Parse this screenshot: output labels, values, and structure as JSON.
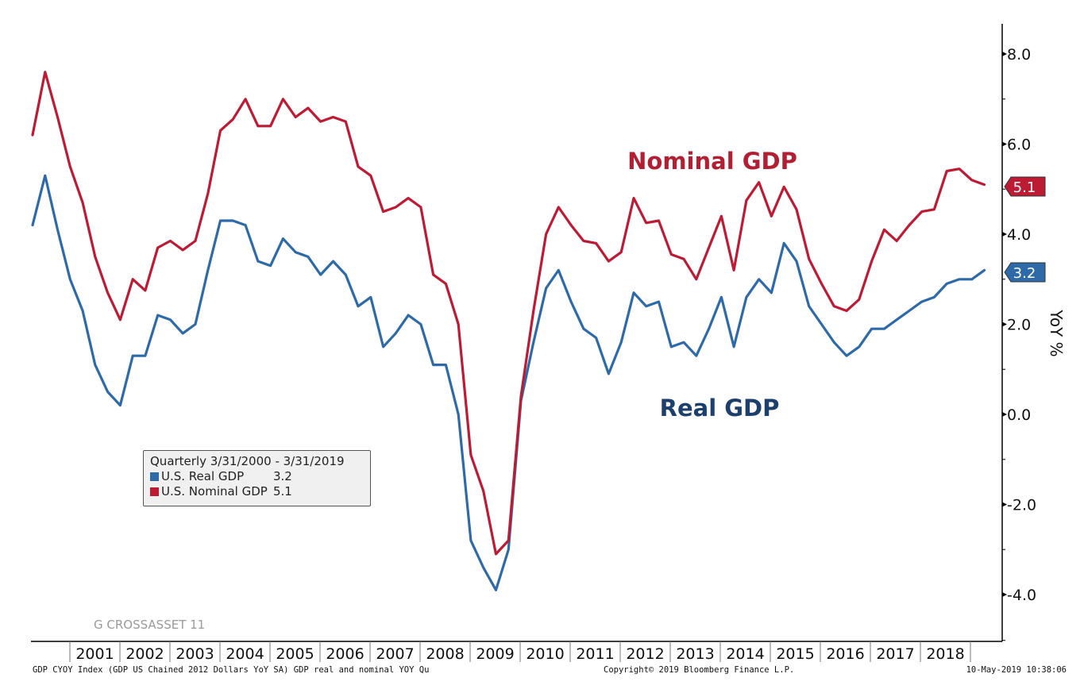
{
  "chart_data": {
    "type": "line",
    "title": "",
    "xlabel": "",
    "ylabel": "YoY %",
    "ylim": [
      -5,
      8.8
    ],
    "yticks": [
      "8.0",
      "6.0",
      "4.0",
      "2.0",
      "0.0",
      "-2.0",
      "-4.0"
    ],
    "ytick_values": [
      8,
      6,
      4,
      2,
      0,
      -2,
      -4
    ],
    "x_start": "3/31/2000",
    "x_end": "3/31/2019",
    "frequency": "Quarterly",
    "year_labels": [
      "2001",
      "2002",
      "2003",
      "2004",
      "2005",
      "2006",
      "2007",
      "2008",
      "2009",
      "2010",
      "2011",
      "2012",
      "2013",
      "2014",
      "2015",
      "2016",
      "2017",
      "2018"
    ],
    "grid": false,
    "legend_position": "bottom-left",
    "series": [
      {
        "name": "U.S. Real GDP",
        "last_value": "3.2",
        "color": "#2e6aa8",
        "values": [
          4.2,
          5.3,
          4.1,
          3.0,
          2.3,
          1.1,
          0.5,
          0.2,
          1.3,
          1.3,
          2.2,
          2.1,
          1.8,
          2.0,
          3.2,
          4.3,
          4.3,
          4.2,
          3.4,
          3.3,
          3.9,
          3.6,
          3.5,
          3.1,
          3.4,
          3.1,
          2.4,
          2.6,
          1.5,
          1.8,
          2.2,
          2.0,
          1.1,
          1.1,
          0.0,
          -2.8,
          -3.4,
          -3.9,
          -3.0,
          0.3,
          1.6,
          2.8,
          3.2,
          2.5,
          1.9,
          1.7,
          0.9,
          1.6,
          2.7,
          2.4,
          2.5,
          1.5,
          1.6,
          1.3,
          1.9,
          2.6,
          1.5,
          2.6,
          3.0,
          2.7,
          3.8,
          3.4,
          2.4,
          2.0,
          1.6,
          1.3,
          1.5,
          1.9,
          1.9,
          2.1,
          2.3,
          2.5,
          2.6,
          2.9,
          3.0,
          3.0,
          3.2
        ]
      },
      {
        "name": "U.S. Nominal GDP",
        "last_value": "5.1",
        "color": "#bd1a34",
        "values": [
          6.2,
          7.6,
          6.6,
          5.5,
          4.7,
          3.5,
          2.7,
          2.1,
          3.0,
          2.75,
          3.7,
          3.85,
          3.65,
          3.85,
          4.9,
          6.3,
          6.55,
          7.0,
          6.4,
          6.4,
          7.0,
          6.6,
          6.8,
          6.5,
          6.6,
          6.5,
          5.5,
          5.3,
          4.5,
          4.6,
          4.8,
          4.6,
          3.1,
          2.9,
          2.0,
          -0.9,
          -1.7,
          -3.1,
          -2.8,
          0.4,
          2.3,
          4.0,
          4.6,
          4.2,
          3.85,
          3.8,
          3.4,
          3.6,
          4.8,
          4.25,
          4.3,
          3.55,
          3.45,
          3.0,
          3.7,
          4.4,
          3.2,
          4.75,
          5.15,
          4.4,
          5.05,
          4.55,
          3.45,
          2.9,
          2.4,
          2.3,
          2.55,
          3.4,
          4.1,
          3.85,
          4.2,
          4.5,
          4.55,
          5.4,
          5.45,
          5.2,
          5.1
        ]
      }
    ],
    "annotations": [
      {
        "text": "Nominal GDP",
        "color": "#b21f33"
      },
      {
        "text": "Real GDP",
        "color": "#1c3f6b"
      }
    ]
  },
  "legend": {
    "header": "Quarterly 3/31/2000 - 3/31/2019",
    "items": [
      {
        "label": "U.S. Real GDP",
        "value": "3.2",
        "color": "#2e6aa8"
      },
      {
        "label": "U.S. Nominal GDP",
        "value": "5.1",
        "color": "#bd1a34"
      }
    ]
  },
  "badges": {
    "nominal": "5.1",
    "real": "3.2"
  },
  "watermark": "G CROSSASSET 11",
  "footer": {
    "source": "GDP CYOY Index (GDP US Chained 2012 Dollars YoY SA) GDP real and nominal YOY  Qu",
    "copyright": "Copyright© 2019 Bloomberg Finance L.P.",
    "timestamp": "10-May-2019 10:38:06"
  }
}
